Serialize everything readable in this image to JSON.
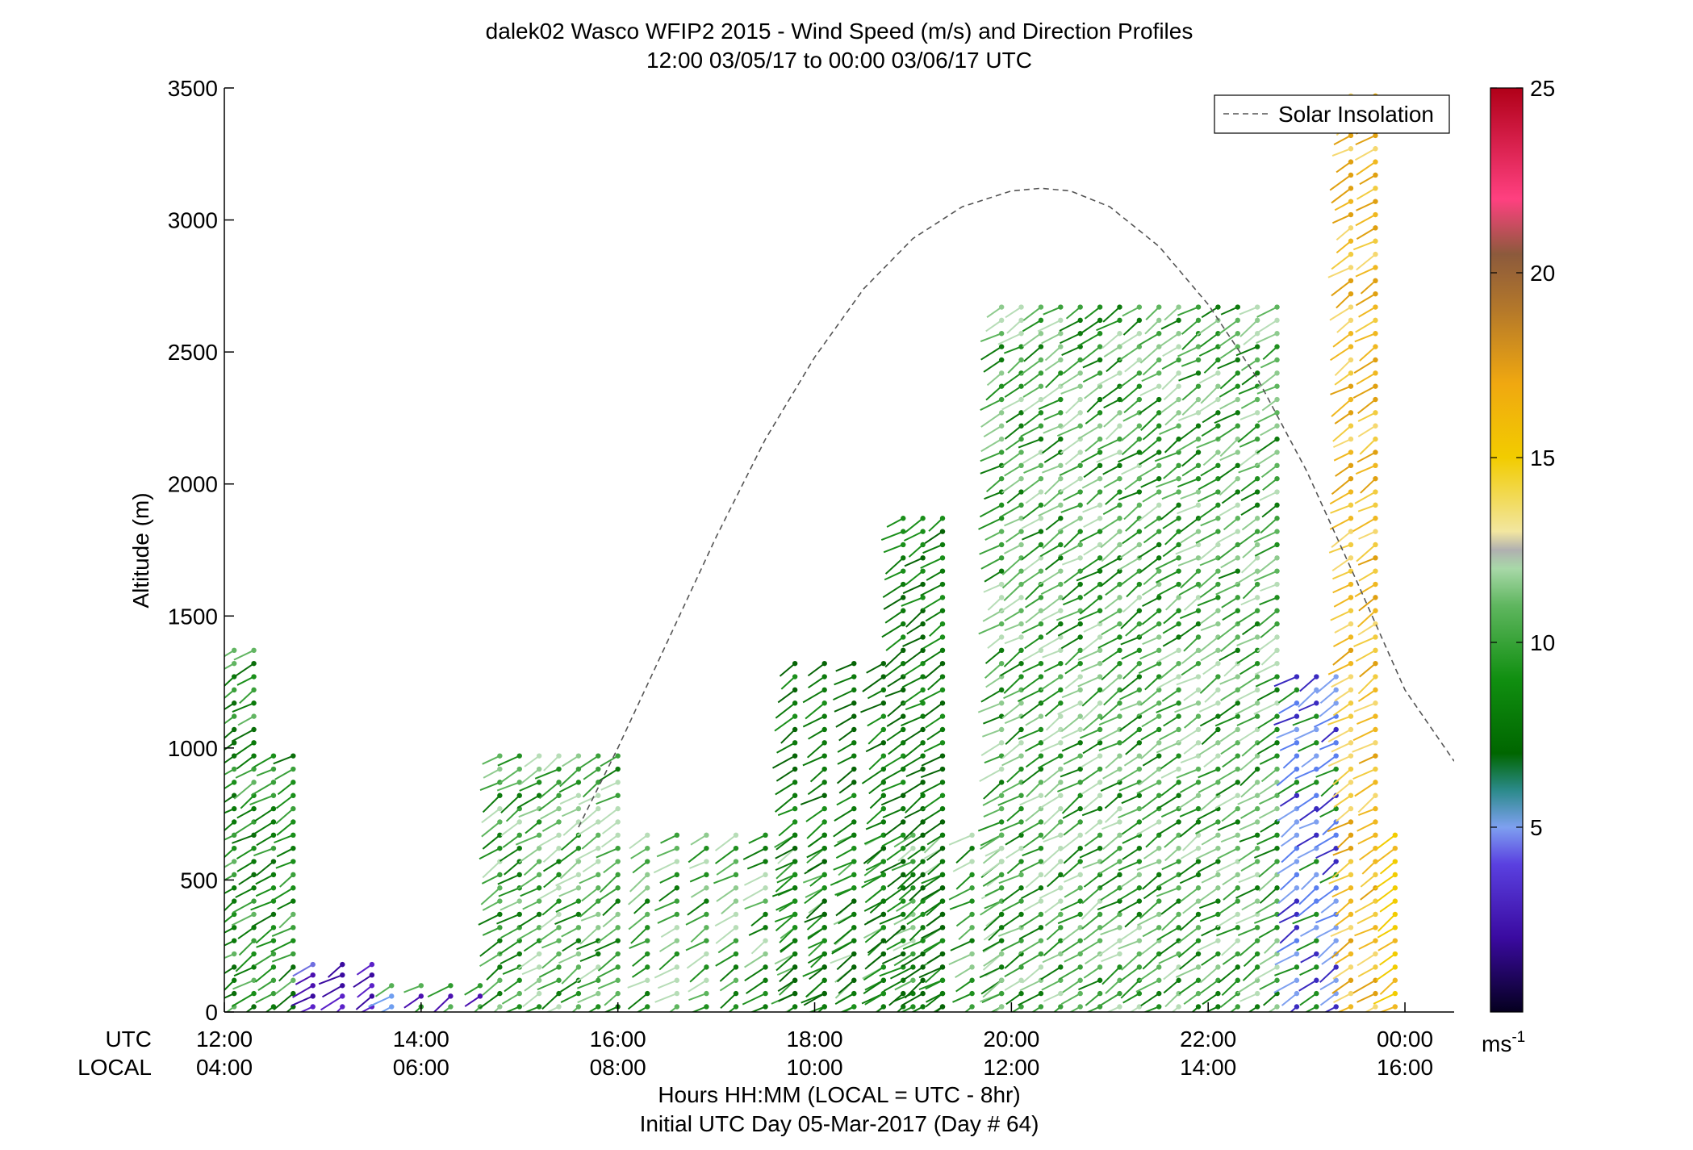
{
  "chart_data": {
    "type": "scatter",
    "title": "dalek02 Wasco WFIP2 2015 - Wind Speed (m/s) and Direction Profiles",
    "subtitle": "12:00 03/05/17 to 00:00 03/06/17  UTC",
    "ylabel": "Altitude (m)",
    "xlabel_line1": "Hours HH:MM  (LOCAL = UTC - 8hr)",
    "xlabel_line2": "Initial UTC Day 05-Mar-2017 (Day # 64)",
    "x_row_labels": {
      "utc": "UTC",
      "local": "LOCAL"
    },
    "xlim": [
      12,
      24.5
    ],
    "ylim": [
      0,
      3500
    ],
    "x_ticks_utc": [
      {
        "value": 12,
        "label": "12:00"
      },
      {
        "value": 14,
        "label": "14:00"
      },
      {
        "value": 16,
        "label": "16:00"
      },
      {
        "value": 18,
        "label": "18:00"
      },
      {
        "value": 20,
        "label": "20:00"
      },
      {
        "value": 22,
        "label": "22:00"
      },
      {
        "value": 24,
        "label": "00:00"
      }
    ],
    "x_ticks_local": [
      "04:00",
      "06:00",
      "08:00",
      "10:00",
      "12:00",
      "14:00",
      "16:00"
    ],
    "y_ticks": [
      0,
      500,
      1000,
      1500,
      2000,
      2500,
      3000,
      3500
    ],
    "legend": {
      "entries": [
        "Solar Insolation"
      ],
      "placement": "top-right"
    },
    "colorbar": {
      "min": 0,
      "max": 25,
      "ticks": [
        5,
        10,
        15,
        20,
        25
      ],
      "unit_label": "ms",
      "unit_exponent": "-1"
    },
    "solar_insolation": {
      "x": [
        15.6,
        16.0,
        16.5,
        17.0,
        17.5,
        18.0,
        18.5,
        19.0,
        19.5,
        20.0,
        20.3,
        20.6,
        21.0,
        21.5,
        22.0,
        22.5,
        23.0,
        23.5,
        24.0,
        24.5
      ],
      "y": [
        700,
        1000,
        1400,
        1800,
        2170,
        2480,
        2740,
        2930,
        3050,
        3110,
        3120,
        3110,
        3050,
        2900,
        2680,
        2400,
        2050,
        1640,
        1220,
        950
      ]
    },
    "profile_groups": [
      {
        "x": [
          11.9,
          12.1,
          12.3
        ],
        "top": 1400,
        "spacing": 50,
        "tone": "low-dark"
      },
      {
        "x": [
          12.5,
          12.7
        ],
        "top": 1000,
        "spacing": 50,
        "tone": "low-dark"
      },
      {
        "x": [
          12.9,
          13.2,
          13.5
        ],
        "top": 200,
        "spacing": 40,
        "tone": "purple"
      },
      {
        "x": [
          13.7,
          14.0,
          14.3,
          14.6
        ],
        "top": 120,
        "spacing": 40,
        "tone": "mix-blue"
      },
      {
        "x": [
          14.8,
          15.0,
          15.2,
          15.4,
          15.6,
          15.8,
          16.0
        ],
        "top": 1000,
        "spacing": 50,
        "tone": "mix-green"
      },
      {
        "x": [
          16.3,
          16.6,
          16.9,
          17.2,
          17.5,
          17.8,
          18.1,
          18.4,
          18.7,
          19.0,
          19.3,
          19.6,
          19.9
        ],
        "top": 700,
        "spacing": 50,
        "tone": "mix-green"
      },
      {
        "x": [
          17.8,
          18.1,
          18.4,
          18.7
        ],
        "top": 1350,
        "spacing": 50,
        "tone": "dark-green"
      },
      {
        "x": [
          18.9,
          19.1,
          19.3
        ],
        "top": 1900,
        "spacing": 50,
        "tone": "dark-green"
      },
      {
        "x": [
          19.9,
          20.1,
          20.3,
          20.5,
          20.7,
          20.9,
          21.1,
          21.3,
          21.5,
          21.7,
          21.9,
          22.1,
          22.3,
          22.5,
          22.7
        ],
        "top": 2700,
        "spacing": 50,
        "tone": "mix-green"
      },
      {
        "x": [
          22.9,
          23.1,
          23.3
        ],
        "top": 1300,
        "spacing": 50,
        "tone": "blue-mix"
      },
      {
        "x": [
          23.45,
          23.7
        ],
        "top": 3500,
        "spacing": 50,
        "tone": "orange"
      },
      {
        "x": [
          23.9
        ],
        "top": 700,
        "spacing": 50,
        "tone": "orange-low"
      }
    ]
  }
}
